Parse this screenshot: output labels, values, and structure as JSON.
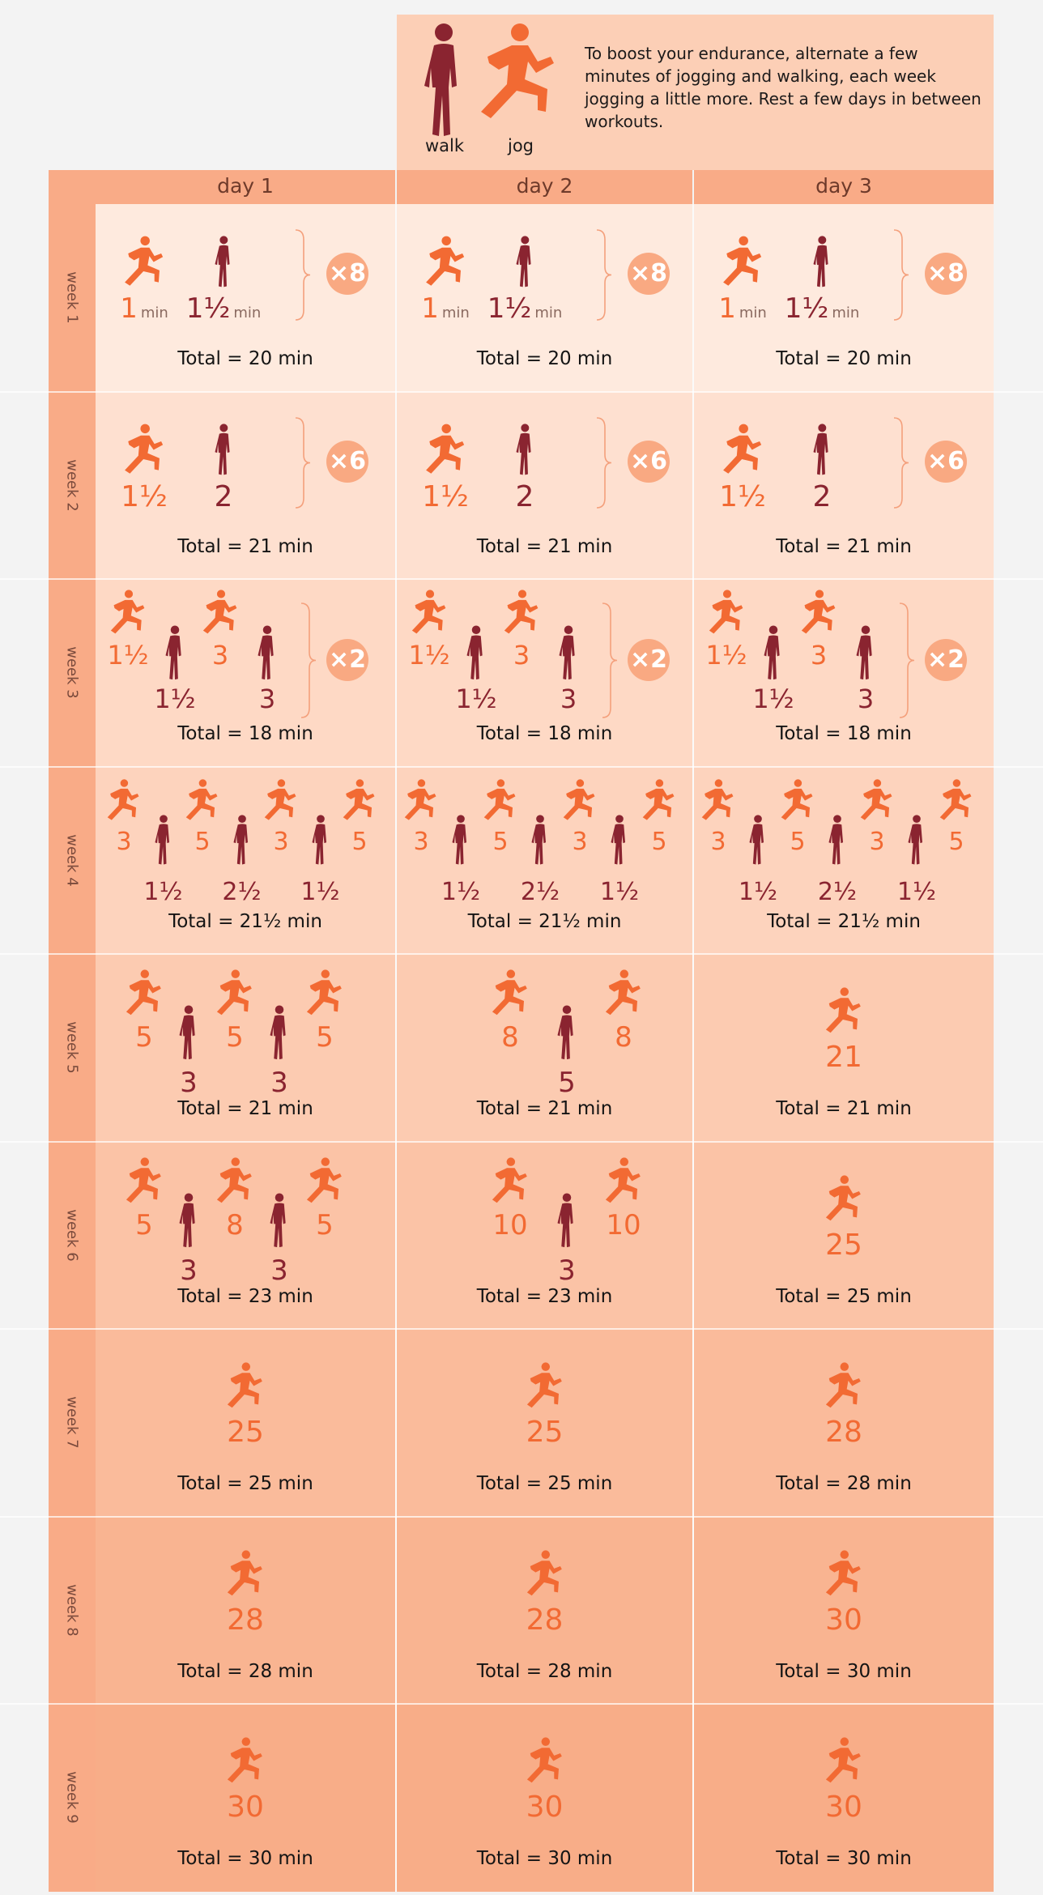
{
  "legend": {
    "walk_label": "walk",
    "jog_label": "jog",
    "description": "To boost your endurance, alternate a few minutes of jogging and walking, each week jogging a little more. Rest a few days in between workouts."
  },
  "days": [
    "day 1",
    "day 2",
    "day 3"
  ],
  "colors": {
    "jog": "#f26a33",
    "walk": "#8a2430",
    "header": "#f9ab87",
    "row_backgrounds": [
      "#feeade",
      "#fee0d0",
      "#fed9c5",
      "#fdd3bd",
      "#fccbb1",
      "#fbc3a6",
      "#fabb9b",
      "#f9b491",
      "#f8ad88"
    ]
  },
  "weeks": [
    {
      "label": "week 1",
      "days": [
        {
          "intervals": [
            {
              "type": "jog",
              "minutes": "1"
            },
            {
              "type": "walk",
              "minutes": "1½"
            }
          ],
          "repeat": "×8",
          "unit": "min",
          "total": "Total = 20 min"
        },
        {
          "intervals": [
            {
              "type": "jog",
              "minutes": "1"
            },
            {
              "type": "walk",
              "minutes": "1½"
            }
          ],
          "repeat": "×8",
          "unit": "min",
          "total": "Total = 20 min"
        },
        {
          "intervals": [
            {
              "type": "jog",
              "minutes": "1"
            },
            {
              "type": "walk",
              "minutes": "1½"
            }
          ],
          "repeat": "×8",
          "unit": "min",
          "total": "Total = 20 min"
        }
      ]
    },
    {
      "label": "week 2",
      "days": [
        {
          "intervals": [
            {
              "type": "jog",
              "minutes": "1½"
            },
            {
              "type": "walk",
              "minutes": "2"
            }
          ],
          "repeat": "×6",
          "total": "Total = 21 min"
        },
        {
          "intervals": [
            {
              "type": "jog",
              "minutes": "1½"
            },
            {
              "type": "walk",
              "minutes": "2"
            }
          ],
          "repeat": "×6",
          "total": "Total = 21 min"
        },
        {
          "intervals": [
            {
              "type": "jog",
              "minutes": "1½"
            },
            {
              "type": "walk",
              "minutes": "2"
            }
          ],
          "repeat": "×6",
          "total": "Total = 21 min"
        }
      ]
    },
    {
      "label": "week 3",
      "days": [
        {
          "intervals": [
            {
              "type": "jog",
              "minutes": "1½"
            },
            {
              "type": "walk",
              "minutes": "1½"
            },
            {
              "type": "jog",
              "minutes": "3"
            },
            {
              "type": "walk",
              "minutes": "3"
            }
          ],
          "repeat": "×2",
          "total": "Total = 18 min"
        },
        {
          "intervals": [
            {
              "type": "jog",
              "minutes": "1½"
            },
            {
              "type": "walk",
              "minutes": "1½"
            },
            {
              "type": "jog",
              "minutes": "3"
            },
            {
              "type": "walk",
              "minutes": "3"
            }
          ],
          "repeat": "×2",
          "total": "Total = 18 min"
        },
        {
          "intervals": [
            {
              "type": "jog",
              "minutes": "1½"
            },
            {
              "type": "walk",
              "minutes": "1½"
            },
            {
              "type": "jog",
              "minutes": "3"
            },
            {
              "type": "walk",
              "minutes": "3"
            }
          ],
          "repeat": "×2",
          "total": "Total = 18 min"
        }
      ]
    },
    {
      "label": "week 4",
      "days": [
        {
          "intervals": [
            {
              "type": "jog",
              "minutes": "3"
            },
            {
              "type": "walk",
              "minutes": "1½"
            },
            {
              "type": "jog",
              "minutes": "5"
            },
            {
              "type": "walk",
              "minutes": "2½"
            },
            {
              "type": "jog",
              "minutes": "3"
            },
            {
              "type": "walk",
              "minutes": "1½"
            },
            {
              "type": "jog",
              "minutes": "5"
            }
          ],
          "total": "Total = 21½ min"
        },
        {
          "intervals": [
            {
              "type": "jog",
              "minutes": "3"
            },
            {
              "type": "walk",
              "minutes": "1½"
            },
            {
              "type": "jog",
              "minutes": "5"
            },
            {
              "type": "walk",
              "minutes": "2½"
            },
            {
              "type": "jog",
              "minutes": "3"
            },
            {
              "type": "walk",
              "minutes": "1½"
            },
            {
              "type": "jog",
              "minutes": "5"
            }
          ],
          "total": "Total = 21½ min"
        },
        {
          "intervals": [
            {
              "type": "jog",
              "minutes": "3"
            },
            {
              "type": "walk",
              "minutes": "1½"
            },
            {
              "type": "jog",
              "minutes": "5"
            },
            {
              "type": "walk",
              "minutes": "2½"
            },
            {
              "type": "jog",
              "minutes": "3"
            },
            {
              "type": "walk",
              "minutes": "1½"
            },
            {
              "type": "jog",
              "minutes": "5"
            }
          ],
          "total": "Total = 21½ min"
        }
      ]
    },
    {
      "label": "week 5",
      "days": [
        {
          "intervals": [
            {
              "type": "jog",
              "minutes": "5"
            },
            {
              "type": "walk",
              "minutes": "3"
            },
            {
              "type": "jog",
              "minutes": "5"
            },
            {
              "type": "walk",
              "minutes": "3"
            },
            {
              "type": "jog",
              "minutes": "5"
            }
          ],
          "total": "Total = 21 min"
        },
        {
          "intervals": [
            {
              "type": "jog",
              "minutes": "8"
            },
            {
              "type": "walk",
              "minutes": "5"
            },
            {
              "type": "jog",
              "minutes": "8"
            }
          ],
          "total": "Total = 21 min"
        },
        {
          "intervals": [
            {
              "type": "jog",
              "minutes": "21"
            }
          ],
          "total": "Total = 21 min"
        }
      ]
    },
    {
      "label": "week 6",
      "days": [
        {
          "intervals": [
            {
              "type": "jog",
              "minutes": "5"
            },
            {
              "type": "walk",
              "minutes": "3"
            },
            {
              "type": "jog",
              "minutes": "8"
            },
            {
              "type": "walk",
              "minutes": "3"
            },
            {
              "type": "jog",
              "minutes": "5"
            }
          ],
          "total": "Total = 23 min"
        },
        {
          "intervals": [
            {
              "type": "jog",
              "minutes": "10"
            },
            {
              "type": "walk",
              "minutes": "3"
            },
            {
              "type": "jog",
              "minutes": "10"
            }
          ],
          "total": "Total = 23 min"
        },
        {
          "intervals": [
            {
              "type": "jog",
              "minutes": "25"
            }
          ],
          "total": "Total = 25 min"
        }
      ]
    },
    {
      "label": "week 7",
      "days": [
        {
          "intervals": [
            {
              "type": "jog",
              "minutes": "25"
            }
          ],
          "total": "Total = 25 min"
        },
        {
          "intervals": [
            {
              "type": "jog",
              "minutes": "25"
            }
          ],
          "total": "Total = 25 min"
        },
        {
          "intervals": [
            {
              "type": "jog",
              "minutes": "28"
            }
          ],
          "total": "Total = 28 min"
        }
      ]
    },
    {
      "label": "week 8",
      "days": [
        {
          "intervals": [
            {
              "type": "jog",
              "minutes": "28"
            }
          ],
          "total": "Total = 28 min"
        },
        {
          "intervals": [
            {
              "type": "jog",
              "minutes": "28"
            }
          ],
          "total": "Total = 28 min"
        },
        {
          "intervals": [
            {
              "type": "jog",
              "minutes": "30"
            }
          ],
          "total": "Total = 30 min"
        }
      ]
    },
    {
      "label": "week 9",
      "days": [
        {
          "intervals": [
            {
              "type": "jog",
              "minutes": "30"
            }
          ],
          "total": "Total = 30 min"
        },
        {
          "intervals": [
            {
              "type": "jog",
              "minutes": "30"
            }
          ],
          "total": "Total = 30 min"
        },
        {
          "intervals": [
            {
              "type": "jog",
              "minutes": "30"
            }
          ],
          "total": "Total = 30 min"
        }
      ]
    }
  ]
}
